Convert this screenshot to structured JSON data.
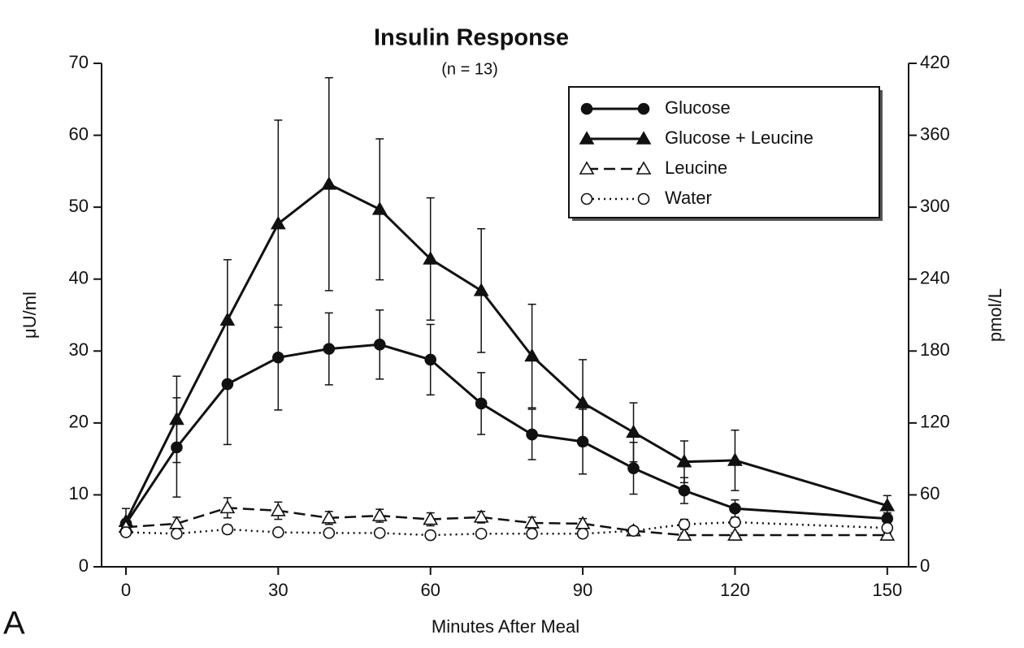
{
  "chart_data": {
    "type": "line",
    "title": "Insulin Response",
    "subtitle": "(n = 13)",
    "panel_label": "A",
    "x_label": "Minutes After Meal",
    "y_label": "μU/ml",
    "y2_label": "pmol/L",
    "x": [
      0,
      10,
      20,
      30,
      40,
      50,
      60,
      70,
      80,
      90,
      100,
      110,
      120,
      150
    ],
    "xlim": [
      -4.8,
      154.2
    ],
    "xticks": [
      0,
      30,
      60,
      90,
      120,
      150
    ],
    "ylim": [
      0,
      70
    ],
    "yticks": [
      0,
      10,
      20,
      30,
      40,
      50,
      60,
      70
    ],
    "y2lim": [
      0,
      420
    ],
    "y2ticks": [
      0,
      60,
      120,
      180,
      240,
      300,
      360,
      420
    ],
    "legend_position": "upper right",
    "series": [
      {
        "name": "Glucose",
        "color": "#111111",
        "marker": "circle",
        "filled": true,
        "dash": "solid",
        "values": [
          6.0,
          16.6,
          25.4,
          29.1,
          30.3,
          30.9,
          28.8,
          22.7,
          18.4,
          17.4,
          13.7,
          10.6,
          8.1,
          6.7
        ],
        "errors": [
          0.6,
          6.9,
          8.4,
          7.3,
          5.0,
          4.8,
          4.9,
          4.3,
          3.5,
          4.5,
          3.6,
          1.8,
          1.2,
          0.8
        ]
      },
      {
        "name": "Glucose + Leucine",
        "color": "#111111",
        "marker": "triangle",
        "filled": true,
        "dash": "solid",
        "values": [
          6.3,
          20.5,
          34.3,
          47.7,
          53.2,
          49.7,
          42.8,
          38.4,
          29.3,
          22.8,
          18.7,
          14.6,
          14.8,
          8.5
        ],
        "errors": [
          1.8,
          6.0,
          8.4,
          14.4,
          14.8,
          9.8,
          8.5,
          8.6,
          7.2,
          6.0,
          4.1,
          2.9,
          4.2,
          1.4
        ]
      },
      {
        "name": "Leucine",
        "color": "#111111",
        "marker": "triangle",
        "filled": false,
        "dash": "dashed",
        "values": [
          5.5,
          6.0,
          8.2,
          7.8,
          6.8,
          7.1,
          6.6,
          6.9,
          6.1,
          6.0,
          5.0,
          4.4,
          4.4,
          4.4
        ],
        "errors": [
          0.8,
          0.9,
          1.4,
          1.2,
          0.9,
          0.9,
          0.9,
          0.8,
          0.8,
          0.7,
          0.4,
          0.3,
          0.3,
          0.3
        ]
      },
      {
        "name": "Water",
        "color": "#111111",
        "marker": "circle",
        "filled": false,
        "dash": "dotted",
        "values": [
          4.8,
          4.6,
          5.2,
          4.8,
          4.7,
          4.7,
          4.4,
          4.6,
          4.6,
          4.6,
          5.0,
          5.9,
          6.2,
          5.4
        ],
        "errors": [
          0.5,
          0.4,
          0.6,
          0.4,
          0.4,
          0.4,
          0.4,
          0.4,
          0.4,
          0.4,
          0.4,
          0.7,
          0.6,
          0.4
        ]
      }
    ]
  }
}
